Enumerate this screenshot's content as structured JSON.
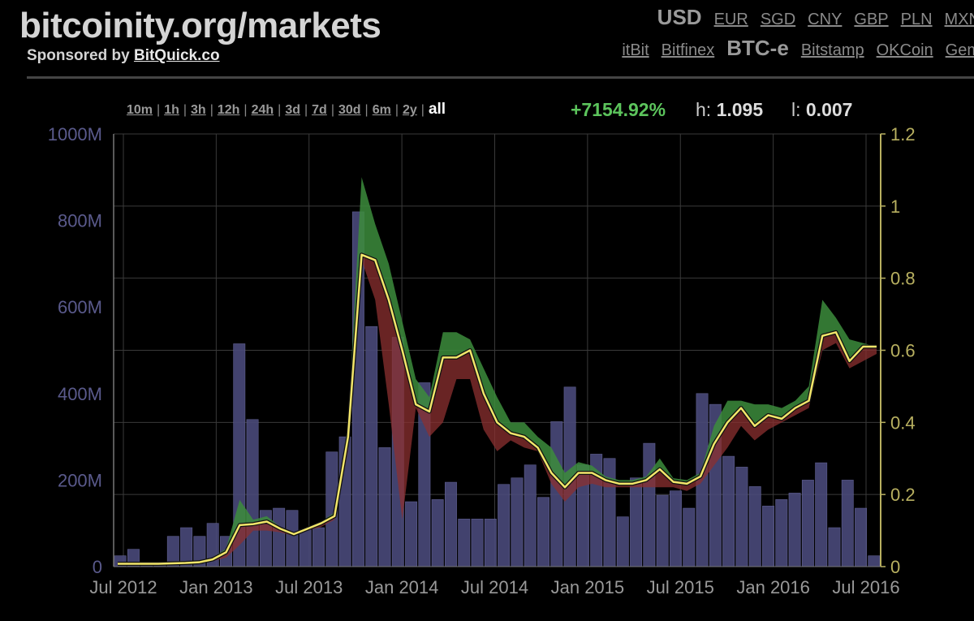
{
  "site": {
    "title": "bitcoinity.org/markets",
    "sponsor_prefix": "Sponsored by",
    "sponsor_link": "BitQuick.co"
  },
  "currencies": [
    {
      "label": "USD",
      "active": true
    },
    {
      "label": "EUR"
    },
    {
      "label": "SGD"
    },
    {
      "label": "CNY"
    },
    {
      "label": "GBP"
    },
    {
      "label": "PLN"
    },
    {
      "label": "MXN"
    }
  ],
  "exchanges": [
    {
      "label": "itBit"
    },
    {
      "label": "Bitfinex"
    },
    {
      "label": "BTC-e",
      "active": true
    },
    {
      "label": "Bitstamp"
    },
    {
      "label": "OKCoin"
    },
    {
      "label": "Gem"
    }
  ],
  "ranges": [
    {
      "label": "10m"
    },
    {
      "label": "1h"
    },
    {
      "label": "3h"
    },
    {
      "label": "12h"
    },
    {
      "label": "24h"
    },
    {
      "label": "3d"
    },
    {
      "label": "7d"
    },
    {
      "label": "30d"
    },
    {
      "label": "6m"
    },
    {
      "label": "2y"
    },
    {
      "label": "all",
      "active": true
    }
  ],
  "stats": {
    "change": "+7154.92%",
    "high_label": "h:",
    "high": "1.095",
    "low_label": "l:",
    "low": "0.007"
  },
  "colors": {
    "volume": "#4a4a7a",
    "line": "#f2e66a",
    "above": "#3c8c3c",
    "below": "#8c3030",
    "grid": "#3a3a3a",
    "left_axis": "#5a5a8c",
    "right_axis": "#b8b060"
  },
  "chart_data": {
    "type": "line",
    "x_tick_labels": [
      "Jul 2012",
      "Jan 2013",
      "Jul 2013",
      "Jan 2014",
      "Jul 2014",
      "Jan 2015",
      "Jul 2015",
      "Jan 2016",
      "Jul 2016"
    ],
    "left_axis": {
      "ticks": [
        "0",
        "200M",
        "400M",
        "600M",
        "800M",
        "1000M"
      ],
      "range": [
        0,
        1000000000
      ]
    },
    "right_axis": {
      "ticks": [
        "0",
        "0.2",
        "0.4",
        "0.6",
        "0.8",
        "1",
        "1.2"
      ],
      "range": [
        0,
        1.2
      ]
    },
    "series": [
      {
        "axis": "left",
        "values": [
          25,
          40,
          10,
          10,
          70,
          90,
          70,
          100,
          70,
          515,
          340,
          130,
          135,
          130,
          85,
          90,
          265,
          300,
          820,
          555,
          275,
          530,
          150,
          425,
          155,
          195,
          110,
          110,
          110,
          190,
          205,
          235,
          160,
          335,
          415,
          235,
          260,
          250,
          115,
          205,
          285,
          165,
          175,
          135,
          400,
          375,
          255,
          230,
          185,
          140,
          155,
          170,
          200,
          240,
          90,
          200,
          135,
          25
        ]
      },
      {
        "axis": "right",
        "values": [
          0.008,
          0.008,
          0.008,
          0.008,
          0.009,
          0.01,
          0.012,
          0.02,
          0.04,
          0.115,
          0.118,
          0.125,
          0.105,
          0.09,
          0.105,
          0.12,
          0.14,
          0.36,
          0.865,
          0.85,
          0.74,
          0.6,
          0.45,
          0.43,
          0.58,
          0.58,
          0.6,
          0.48,
          0.4,
          0.37,
          0.36,
          0.33,
          0.26,
          0.22,
          0.26,
          0.26,
          0.24,
          0.23,
          0.23,
          0.24,
          0.27,
          0.235,
          0.23,
          0.25,
          0.34,
          0.4,
          0.44,
          0.39,
          0.42,
          0.41,
          0.44,
          0.46,
          0.64,
          0.65,
          0.57,
          0.61,
          0.61
        ]
      },
      {
        "axis": "right",
        "values": [
          0.009,
          0.009,
          0.009,
          0.009,
          0.011,
          0.012,
          0.015,
          0.025,
          0.05,
          0.185,
          0.13,
          0.14,
          0.11,
          0.095,
          0.11,
          0.125,
          0.15,
          0.4,
          1.08,
          0.95,
          0.84,
          0.68,
          0.52,
          0.47,
          0.65,
          0.65,
          0.63,
          0.55,
          0.47,
          0.4,
          0.4,
          0.36,
          0.33,
          0.26,
          0.29,
          0.28,
          0.25,
          0.24,
          0.24,
          0.25,
          0.3,
          0.245,
          0.24,
          0.26,
          0.39,
          0.46,
          0.46,
          0.45,
          0.45,
          0.44,
          0.46,
          0.5,
          0.74,
          0.69,
          0.63,
          0.62,
          0.61
        ]
      },
      {
        "axis": "right",
        "values": [
          0.007,
          0.007,
          0.007,
          0.007,
          0.008,
          0.009,
          0.01,
          0.015,
          0.025,
          0.06,
          0.1,
          0.1,
          0.095,
          0.085,
          0.1,
          0.11,
          0.13,
          0.32,
          0.85,
          0.74,
          0.45,
          0.13,
          0.44,
          0.36,
          0.4,
          0.52,
          0.52,
          0.38,
          0.32,
          0.35,
          0.33,
          0.32,
          0.23,
          0.18,
          0.22,
          0.23,
          0.22,
          0.22,
          0.22,
          0.22,
          0.22,
          0.22,
          0.21,
          0.23,
          0.28,
          0.33,
          0.39,
          0.35,
          0.38,
          0.4,
          0.42,
          0.44,
          0.6,
          0.62,
          0.55,
          0.57,
          0.59
        ]
      }
    ]
  }
}
